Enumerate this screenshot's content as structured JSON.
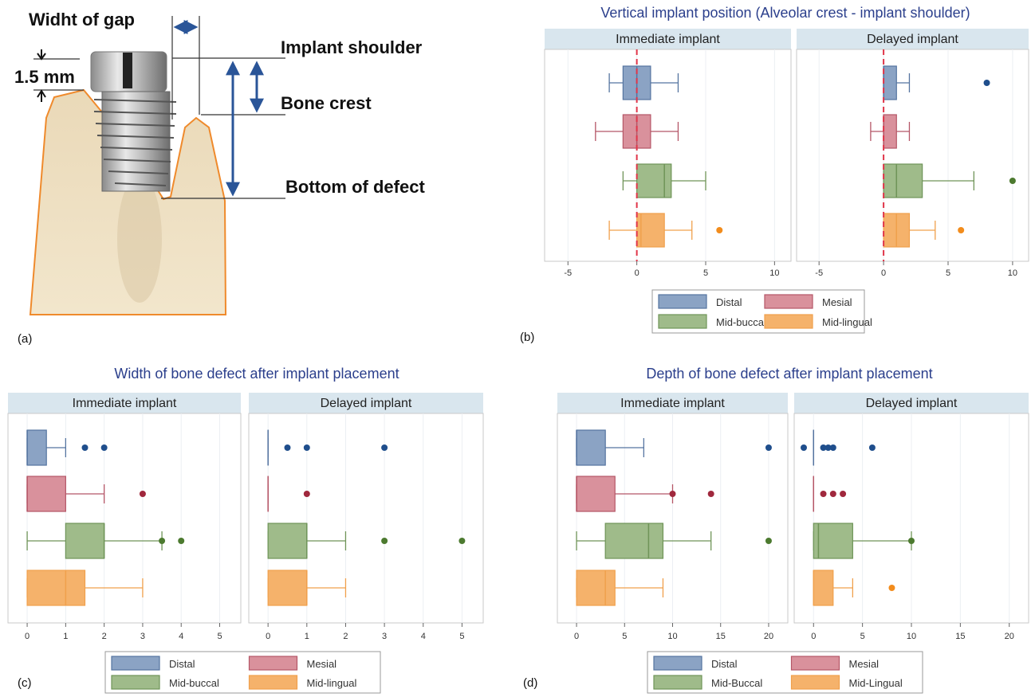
{
  "diagram": {
    "labels": {
      "gap": "Widht of gap",
      "mm": "1.5 mm",
      "shoulder": "Implant shoulder",
      "crest": "Bone crest",
      "bottom": "Bottom of defect"
    },
    "panel_letter": "(a)"
  },
  "colors": {
    "distal": {
      "fill": "#8ba3c4",
      "stroke": "#5574a0",
      "point": "#1f4e8c"
    },
    "mesial": {
      "fill": "#d9919c",
      "stroke": "#b55667",
      "point": "#a0283d"
    },
    "mid_buccal": {
      "fill": "#9fbb8a",
      "stroke": "#6f9458",
      "point": "#4c7a2f"
    },
    "mid_lingual": {
      "fill": "#f5b26b",
      "stroke": "#f0a04c",
      "point": "#f28c1c"
    },
    "strip": "#d9e6ee",
    "title": "#2b3f8c",
    "zero_line": "#e0364a"
  },
  "chart_data": [
    {
      "type": "boxplot",
      "panel": "(b)",
      "title": "Vertical implant position (Alveolar crest - implant shoulder)",
      "facets": [
        "Immediate implant",
        "Delayed implant"
      ],
      "xlim": [
        -6,
        10.5
      ],
      "xticks": [
        -5,
        0,
        5,
        10
      ],
      "zero_line": true,
      "legend": [
        "Distal",
        "Mesial",
        "Mid-buccal",
        "Mid-lingual"
      ],
      "series": [
        {
          "name": "Distal",
          "key": "distal",
          "facets": [
            {
              "wmin": -2,
              "q1": -1,
              "med": 0,
              "q3": 1,
              "wmax": 3,
              "out": []
            },
            {
              "wmin": 0,
              "q1": 0,
              "med": 0,
              "q3": 1,
              "wmax": 2,
              "out": [
                8
              ]
            }
          ]
        },
        {
          "name": "Mesial",
          "key": "mesial",
          "facets": [
            {
              "wmin": -3,
              "q1": -1,
              "med": 0,
              "q3": 1,
              "wmax": 3,
              "out": []
            },
            {
              "wmin": -1,
              "q1": 0,
              "med": 0,
              "q3": 1,
              "wmax": 2,
              "out": []
            }
          ]
        },
        {
          "name": "Mid-buccal",
          "key": "mid_buccal",
          "facets": [
            {
              "wmin": -1,
              "q1": 0,
              "med": 2,
              "q3": 2.5,
              "wmax": 5,
              "out": []
            },
            {
              "wmin": 0,
              "q1": 0,
              "med": 1,
              "q3": 3,
              "wmax": 7,
              "out": [
                10
              ]
            }
          ]
        },
        {
          "name": "Mid-lingual",
          "key": "mid_lingual",
          "facets": [
            {
              "wmin": -2,
              "q1": 0,
              "med": 0.3,
              "q3": 2,
              "wmax": 4,
              "out": [
                6
              ]
            },
            {
              "wmin": 0,
              "q1": 0,
              "med": 1,
              "q3": 2,
              "wmax": 4,
              "out": [
                6
              ]
            }
          ]
        }
      ]
    },
    {
      "type": "boxplot",
      "panel": "(c)",
      "title": "Width of bone defect after implant placement",
      "facets": [
        "Immediate implant",
        "Delayed implant"
      ],
      "xlim": [
        -0.25,
        5.3
      ],
      "xticks": [
        0,
        1,
        2,
        3,
        4,
        5
      ],
      "zero_line": false,
      "legend": [
        "Distal",
        "Mesial",
        "Mid-buccal",
        "Mid-lingual"
      ],
      "series": [
        {
          "name": "Distal",
          "key": "distal",
          "facets": [
            {
              "wmin": 0,
              "q1": 0,
              "med": 0,
              "q3": 0.5,
              "wmax": 1,
              "out": [
                1.5,
                2
              ]
            },
            {
              "wmin": 0,
              "q1": 0,
              "med": 0,
              "q3": 0,
              "wmax": 0,
              "out": [
                0.5,
                1,
                3
              ]
            }
          ]
        },
        {
          "name": "Mesial",
          "key": "mesial",
          "facets": [
            {
              "wmin": 0,
              "q1": 0,
              "med": 0,
              "q3": 1,
              "wmax": 2,
              "out": [
                3
              ]
            },
            {
              "wmin": 0,
              "q1": 0,
              "med": 0,
              "q3": 0,
              "wmax": 0,
              "out": [
                1
              ]
            }
          ]
        },
        {
          "name": "Mid-buccal",
          "key": "mid_buccal",
          "facets": [
            {
              "wmin": 0,
              "q1": 1,
              "med": 2,
              "q3": 2,
              "wmax": 3.5,
              "out": [
                3.5,
                4
              ]
            },
            {
              "wmin": 0,
              "q1": 0,
              "med": 1,
              "q3": 1,
              "wmax": 2,
              "out": [
                3,
                5
              ]
            }
          ]
        },
        {
          "name": "Mid-lingual",
          "key": "mid_lingual",
          "facets": [
            {
              "wmin": 0,
              "q1": 0,
              "med": 1,
              "q3": 1.5,
              "wmax": 3,
              "out": []
            },
            {
              "wmin": 0,
              "q1": 0,
              "med": 1,
              "q3": 1,
              "wmax": 2,
              "out": []
            }
          ]
        }
      ]
    },
    {
      "type": "boxplot",
      "panel": "(d)",
      "title": "Depth of bone defect after implant placement",
      "facets": [
        "Immediate implant",
        "Delayed implant"
      ],
      "xlim": [
        -1,
        21
      ],
      "xticks": [
        0,
        5,
        10,
        15,
        20
      ],
      "zero_line": false,
      "legend": [
        "Distal",
        "Mesial",
        "Mid-Buccal",
        "Mid-Lingual"
      ],
      "series": [
        {
          "name": "Distal",
          "key": "distal",
          "facets": [
            {
              "wmin": 0,
              "q1": 0,
              "med": 0,
              "q3": 3,
              "wmax": 7,
              "out": [
                20
              ]
            },
            {
              "wmin": 0,
              "q1": 0,
              "med": 0,
              "q3": 0,
              "wmax": 0,
              "out": [
                -1,
                1,
                1.5,
                2,
                6
              ]
            }
          ]
        },
        {
          "name": "Mesial",
          "key": "mesial",
          "facets": [
            {
              "wmin": 0,
              "q1": 0,
              "med": 0,
              "q3": 4,
              "wmax": 10,
              "out": [
                10,
                14
              ]
            },
            {
              "wmin": 0,
              "q1": 0,
              "med": 0,
              "q3": 0,
              "wmax": 0,
              "out": [
                1,
                2,
                3
              ]
            }
          ]
        },
        {
          "name": "Mid-Buccal",
          "key": "mid_buccal",
          "facets": [
            {
              "wmin": 0,
              "q1": 3,
              "med": 7.5,
              "q3": 9,
              "wmax": 14,
              "out": [
                20
              ]
            },
            {
              "wmin": 0,
              "q1": 0,
              "med": 0.5,
              "q3": 4,
              "wmax": 10,
              "out": [
                10
              ]
            }
          ]
        },
        {
          "name": "Mid-Lingual",
          "key": "mid_lingual",
          "facets": [
            {
              "wmin": 0,
              "q1": 0,
              "med": 3,
              "q3": 4,
              "wmax": 9,
              "out": []
            },
            {
              "wmin": 0,
              "q1": 0,
              "med": 0,
              "q3": 2,
              "wmax": 4,
              "out": [
                8
              ]
            }
          ]
        }
      ]
    }
  ]
}
